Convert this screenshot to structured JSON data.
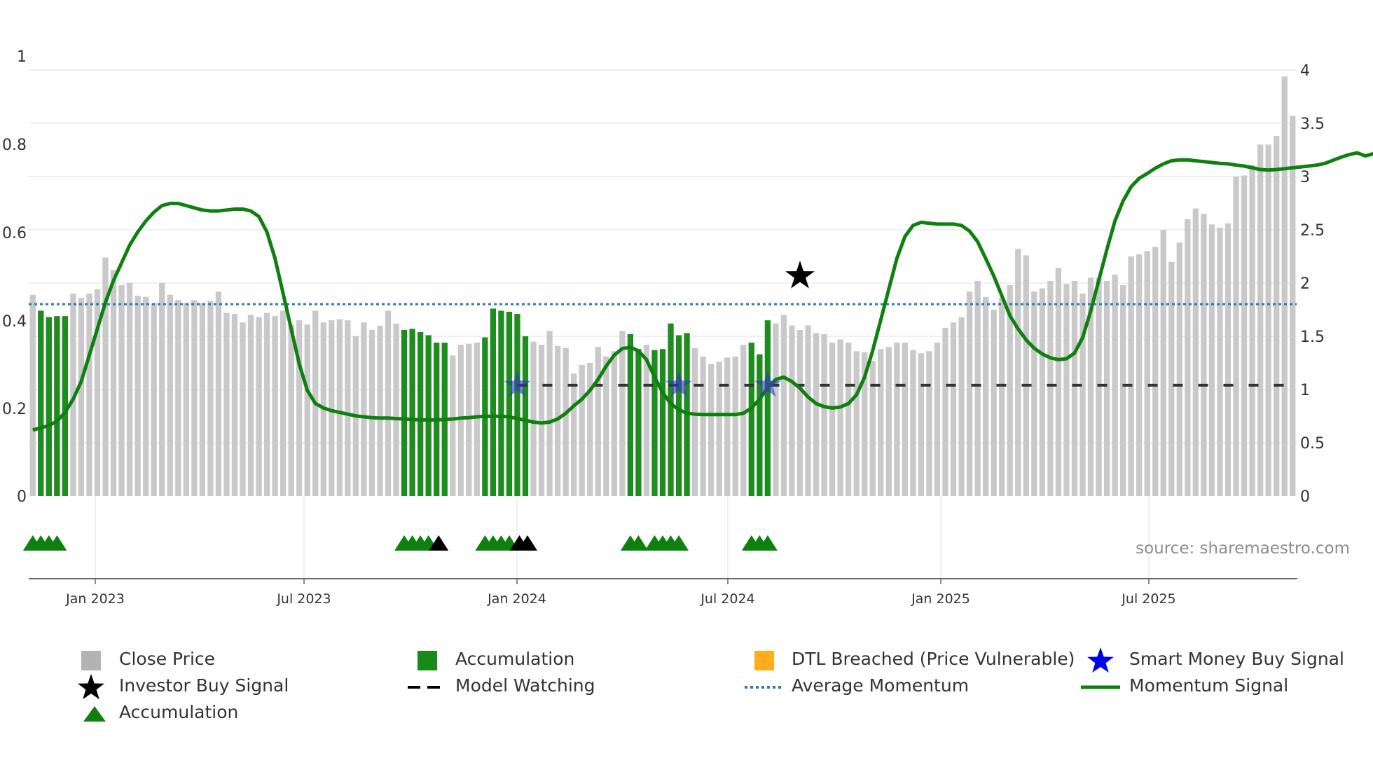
{
  "chart_data": {
    "type": "bar",
    "watermark": "source: sharemaestro.com",
    "y_left": {
      "range": [
        0,
        1
      ],
      "ticks": [
        "0",
        "0.2",
        "0.4",
        "0.6",
        "0.8",
        "1"
      ]
    },
    "y_right": {
      "range": [
        0,
        4
      ],
      "ticks": [
        "0",
        "0.5",
        "1",
        "1.5",
        "2",
        "2.5",
        "3",
        "3.5",
        "4"
      ]
    },
    "x_ticks": [
      "Jan 2023",
      "Jul 2023",
      "Jan 2024",
      "Jul 2024",
      "Jan 2025",
      "Jul 2025"
    ],
    "average_momentum": 0.436,
    "model_watching_level": 1.04,
    "close_price": [
      1.89,
      1.74,
      1.68,
      1.69,
      1.69,
      1.9,
      1.86,
      1.9,
      1.94,
      2.24,
      2.12,
      1.98,
      2.0,
      1.88,
      1.87,
      1.81,
      2.0,
      1.89,
      1.84,
      1.81,
      1.84,
      1.81,
      1.83,
      1.92,
      1.72,
      1.71,
      1.63,
      1.7,
      1.68,
      1.72,
      1.69,
      1.74,
      1.61,
      1.65,
      1.61,
      1.74,
      1.63,
      1.65,
      1.66,
      1.65,
      1.5,
      1.63,
      1.56,
      1.6,
      1.74,
      1.62,
      1.56,
      1.57,
      1.54,
      1.51,
      1.44,
      1.44,
      1.32,
      1.42,
      1.43,
      1.44,
      1.49,
      1.76,
      1.74,
      1.73,
      1.71,
      1.5,
      1.45,
      1.42,
      1.55,
      1.41,
      1.39,
      1.15,
      1.23,
      1.25,
      1.4,
      1.31,
      1.36,
      1.55,
      1.52,
      1.38,
      1.42,
      1.37,
      1.38,
      1.62,
      1.51,
      1.53,
      1.39,
      1.31,
      1.24,
      1.26,
      1.3,
      1.31,
      1.42,
      1.44,
      1.33,
      1.65,
      1.62,
      1.7,
      1.6,
      1.56,
      1.6,
      1.53,
      1.52,
      1.44,
      1.47,
      1.44,
      1.36,
      1.35,
      1.27,
      1.38,
      1.4,
      1.44,
      1.44,
      1.37,
      1.34,
      1.36,
      1.44,
      1.58,
      1.63,
      1.68,
      1.92,
      2.02,
      1.87,
      1.75,
      1.86,
      1.98,
      2.32,
      2.26,
      1.92,
      1.95,
      2.02,
      2.14,
      1.99,
      2.02,
      1.9,
      2.05,
      2.05,
      2.02,
      2.08,
      1.98,
      2.25,
      2.27,
      2.3,
      2.34,
      2.5,
      2.2,
      2.38,
      2.6,
      2.7,
      2.65,
      2.55,
      2.52,
      2.56,
      3.0,
      3.01,
      3.11,
      3.3,
      3.3,
      3.38,
      3.94,
      3.57
    ],
    "accumulation_bars": [
      1,
      2,
      3,
      4,
      46,
      47,
      48,
      49,
      50,
      51,
      56,
      57,
      58,
      59,
      60,
      61,
      74,
      75,
      77,
      78,
      79,
      80,
      81,
      89,
      90,
      91
    ],
    "momentum_signal": [
      0.15,
      0.155,
      0.16,
      0.17,
      0.19,
      0.22,
      0.26,
      0.32,
      0.38,
      0.44,
      0.49,
      0.53,
      0.57,
      0.6,
      0.625,
      0.645,
      0.66,
      0.665,
      0.665,
      0.66,
      0.655,
      0.65,
      0.648,
      0.648,
      0.65,
      0.652,
      0.652,
      0.648,
      0.635,
      0.6,
      0.54,
      0.46,
      0.38,
      0.3,
      0.24,
      0.21,
      0.2,
      0.194,
      0.19,
      0.186,
      0.182,
      0.18,
      0.178,
      0.177,
      0.177,
      0.176,
      0.175,
      0.174,
      0.173,
      0.173,
      0.173,
      0.174,
      0.175,
      0.177,
      0.178,
      0.18,
      0.181,
      0.181,
      0.181,
      0.18,
      0.176,
      0.172,
      0.168,
      0.166,
      0.168,
      0.175,
      0.188,
      0.205,
      0.22,
      0.24,
      0.265,
      0.295,
      0.32,
      0.335,
      0.338,
      0.33,
      0.31,
      0.27,
      0.235,
      0.21,
      0.196,
      0.188,
      0.186,
      0.185,
      0.185,
      0.185,
      0.185,
      0.185,
      0.188,
      0.2,
      0.22,
      0.245,
      0.265,
      0.27,
      0.26,
      0.245,
      0.225,
      0.21,
      0.203,
      0.2,
      0.202,
      0.21,
      0.23,
      0.27,
      0.33,
      0.4,
      0.47,
      0.54,
      0.59,
      0.615,
      0.622,
      0.62,
      0.618,
      0.618,
      0.618,
      0.615,
      0.602,
      0.578,
      0.54,
      0.5,
      0.455,
      0.41,
      0.38,
      0.355,
      0.336,
      0.323,
      0.314,
      0.31,
      0.312,
      0.325,
      0.36,
      0.42,
      0.49,
      0.56,
      0.625,
      0.67,
      0.703,
      0.722,
      0.733,
      0.745,
      0.755,
      0.762,
      0.764,
      0.764,
      0.762,
      0.76,
      0.758,
      0.756,
      0.755,
      0.752,
      0.75,
      0.746,
      0.742,
      0.741,
      0.742,
      0.744,
      0.746,
      0.748,
      0.75,
      0.752,
      0.756,
      0.763,
      0.77,
      0.776,
      0.78,
      0.773,
      0.778,
      0.797,
      0.787,
      0.8,
      0.808,
      0.805
    ],
    "smart_money_signals": [
      60,
      80,
      91
    ],
    "investor_signals": [
      95
    ],
    "model_watching_start": 60,
    "markers": {
      "accumulation": [
        0,
        1,
        2,
        3,
        46,
        47,
        48,
        49,
        56,
        57,
        58,
        59,
        74,
        75,
        77,
        78,
        79,
        80,
        89,
        90,
        91
      ],
      "investor": [
        50,
        60,
        61
      ]
    },
    "legend": [
      {
        "label": "Close Price",
        "color": "#b3b3b3",
        "symbol": "square"
      },
      {
        "label": "Accumulation",
        "color": "#188a18",
        "symbol": "square"
      },
      {
        "label": "DTL Breached (Price Vulnerable)",
        "color": "#ffad1f",
        "symbol": "square"
      },
      {
        "label": "Smart Money Buy Signal",
        "color": "#0000ee",
        "symbol": "star"
      },
      {
        "label": "Investor Buy Signal",
        "color": "#000000",
        "symbol": "star"
      },
      {
        "label": "Model Watching",
        "color": "#000000",
        "symbol": "dash"
      },
      {
        "label": "Average Momentum",
        "color": "#2a7ab8",
        "symbol": "dot"
      },
      {
        "label": "Momentum Signal",
        "color": "#0f7f0f",
        "symbol": "line"
      },
      {
        "label": "Accumulation",
        "color": "#0f7f0f",
        "symbol": "triangle"
      }
    ]
  }
}
